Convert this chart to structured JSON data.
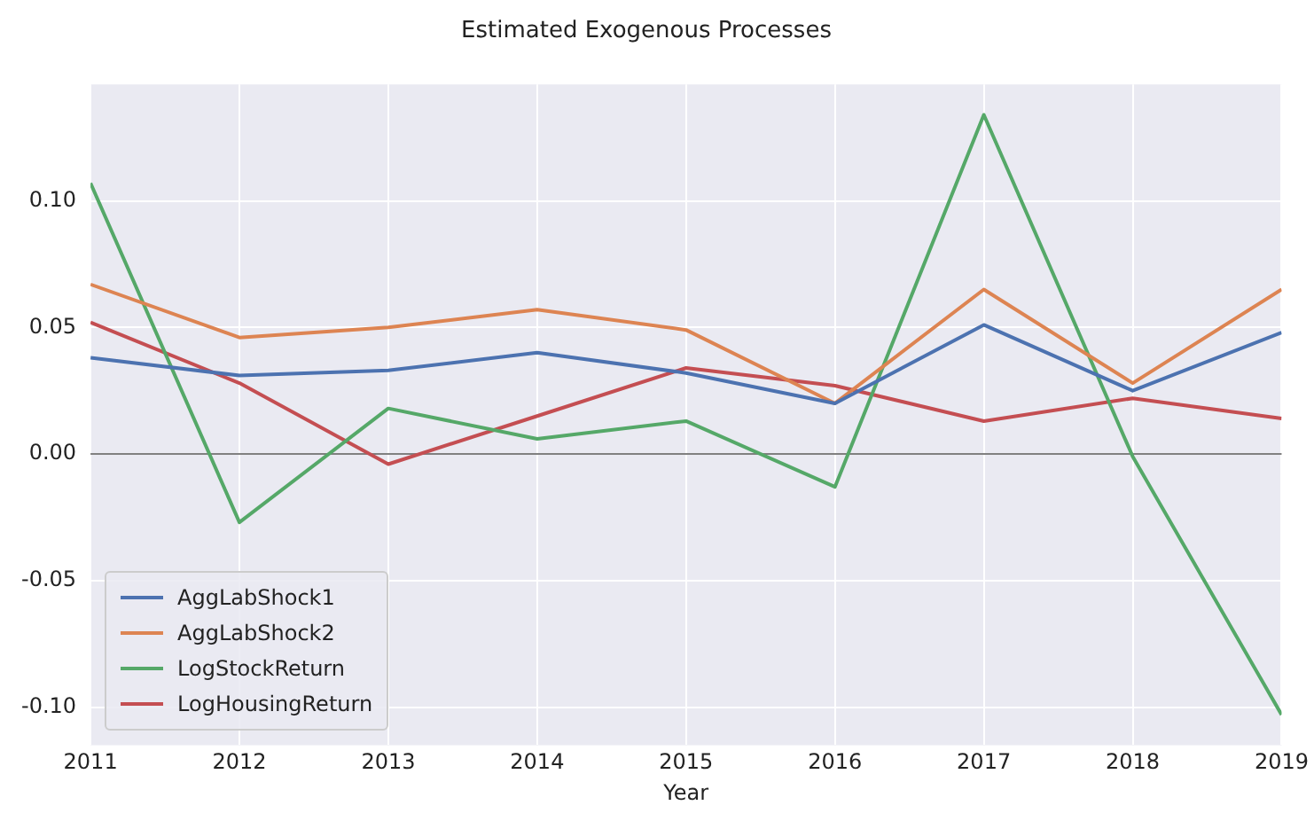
{
  "chart_data": {
    "type": "line",
    "title": "Estimated Exogenous Processes",
    "xlabel": "Year",
    "x": [
      2011,
      2012,
      2013,
      2014,
      2015,
      2016,
      2017,
      2018,
      2019
    ],
    "series": [
      {
        "name": "AggLabShock1",
        "color": "#4c72b0",
        "values": [
          0.038,
          0.031,
          0.033,
          0.04,
          0.032,
          0.02,
          0.051,
          0.025,
          0.048
        ]
      },
      {
        "name": "AggLabShock2",
        "color": "#dd8452",
        "values": [
          0.067,
          0.046,
          0.05,
          0.057,
          0.049,
          0.02,
          0.065,
          0.028,
          0.065
        ]
      },
      {
        "name": "LogStockReturn",
        "color": "#55a868",
        "values": [
          0.107,
          -0.027,
          0.018,
          0.006,
          0.013,
          -0.013,
          0.134,
          -0.001,
          -0.103
        ]
      },
      {
        "name": "LogHousingReturn",
        "color": "#c44e52",
        "values": [
          0.052,
          0.028,
          -0.004,
          0.015,
          0.034,
          0.027,
          0.013,
          0.022,
          0.014
        ]
      }
    ],
    "xlim": [
      2011,
      2019
    ],
    "xticks": [
      2011,
      2012,
      2013,
      2014,
      2015,
      2016,
      2017,
      2018,
      2019
    ],
    "ylim": [
      -0.115,
      0.146
    ],
    "yticks": [
      {
        "value": -0.1,
        "label": "-0.10"
      },
      {
        "value": -0.05,
        "label": "-0.05"
      },
      {
        "value": 0,
        "label": "0.00"
      },
      {
        "value": 0.05,
        "label": "0.05"
      },
      {
        "value": 0.1,
        "label": "0.10"
      }
    ],
    "ref_lines": [
      {
        "axis": "y",
        "value": 0,
        "color": "#808080"
      }
    ],
    "grid": true,
    "legend": "bottom left",
    "marker": "none",
    "line_style": "solid"
  }
}
